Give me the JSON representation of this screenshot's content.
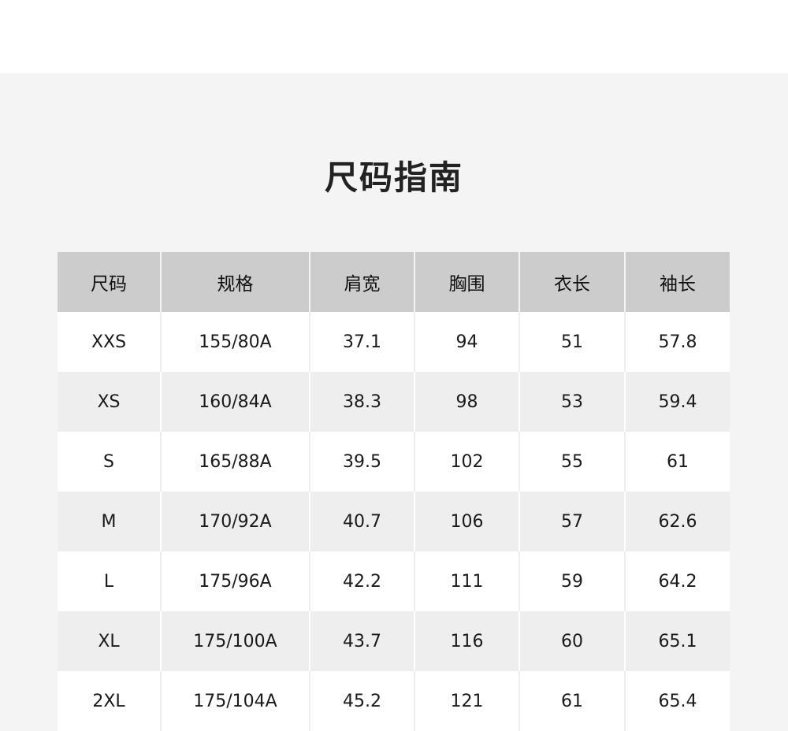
{
  "title": "尺码指南",
  "colors": {
    "header_bg": "#cccccc",
    "row_alt_bg": "#eeeeee",
    "page_bg": "#f4f4f4"
  },
  "table": {
    "headers": [
      "尺码",
      "规格",
      "肩宽",
      "胸围",
      "衣长",
      "袖长"
    ],
    "rows": [
      [
        "XXS",
        "155/80A",
        "37.1",
        "94",
        "51",
        "57.8"
      ],
      [
        "XS",
        "160/84A",
        "38.3",
        "98",
        "53",
        "59.4"
      ],
      [
        "S",
        "165/88A",
        "39.5",
        "102",
        "55",
        "61"
      ],
      [
        "M",
        "170/92A",
        "40.7",
        "106",
        "57",
        "62.6"
      ],
      [
        "L",
        "175/96A",
        "42.2",
        "111",
        "59",
        "64.2"
      ],
      [
        "XL",
        "175/100A",
        "43.7",
        "116",
        "60",
        "65.1"
      ],
      [
        "2XL",
        "175/104A",
        "45.2",
        "121",
        "61",
        "65.4"
      ]
    ]
  }
}
